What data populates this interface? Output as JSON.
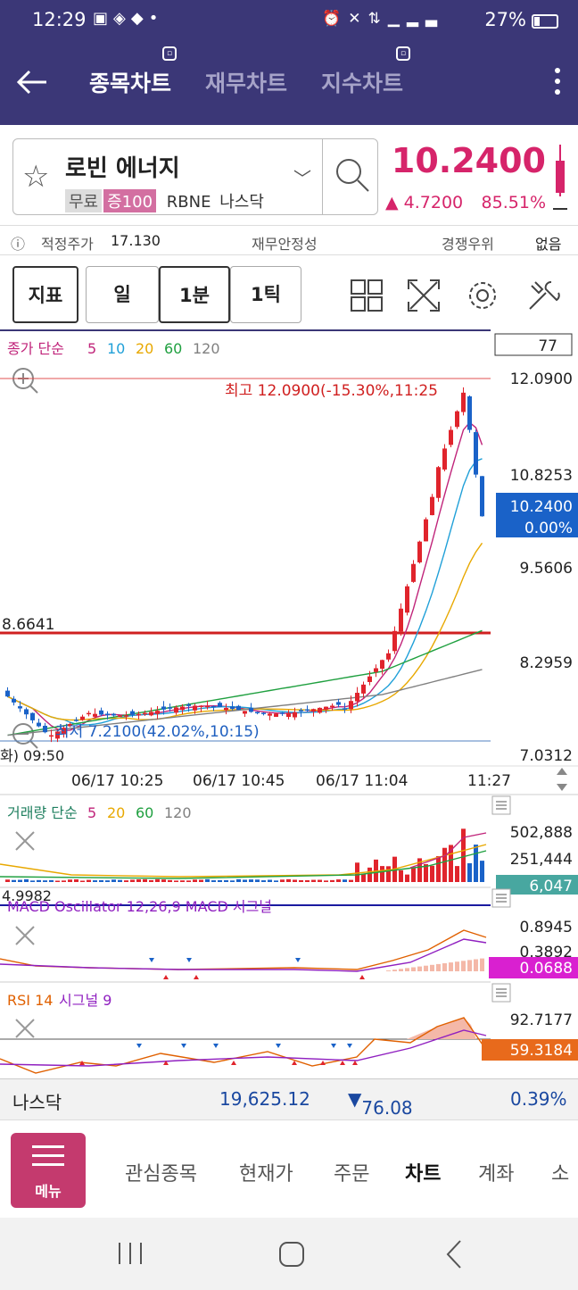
{
  "status_bar": {
    "time": "12:29",
    "battery": "27%",
    "left_icons": [
      "image-icon",
      "lock-icon",
      "binance-icon",
      "dot-icon"
    ],
    "right_icons": [
      "alarm-icon",
      "mute-icon",
      "lte-icon",
      "signal-icon"
    ]
  },
  "header": {
    "tabs": [
      {
        "label": "종목차트",
        "active": true
      },
      {
        "label": "재무차트",
        "active": false
      },
      {
        "label": "지수차트",
        "active": false
      }
    ]
  },
  "stock": {
    "name": "로빈 에너지",
    "tags": [
      "무료",
      "증100"
    ],
    "ticker": "RBNE",
    "market": "나스닥",
    "price": "10.2400",
    "change": "4.7200",
    "change_pct": "85.51%"
  },
  "info_row": {
    "fair_price_label": "적정주가",
    "fair_price": "17.130",
    "financial_stability": "재무안정성",
    "competition_rank": "경쟁우위",
    "none": "없음"
  },
  "toolbar": {
    "indicator": "지표",
    "period_day": "일",
    "period_1min": "1분",
    "period_1tick": "1틱"
  },
  "chart": {
    "legend_prefix": "종가 단순",
    "ma_periods": [
      "5",
      "10",
      "20",
      "60",
      "120"
    ],
    "ma_colors": [
      "#c0247a",
      "#20a0d8",
      "#e8a800",
      "#20a040",
      "#808080"
    ],
    "count_box": "77",
    "high_label": "최고 12.0900(-15.30%,11:25",
    "low_label": "최저 7.2100(42.02%,10:15)",
    "ref_line_label": "8.6641",
    "y_ticks": [
      "12.0900",
      "10.8253",
      "9.5606",
      "8.2959",
      "7.0312"
    ],
    "current_price_tag": "10.2400",
    "current_pct_tag": "0.00%",
    "x_labels": [
      "화) 09:50",
      "06/17 10:25",
      "06/17 10:45",
      "06/17 11:04",
      "11:27"
    ]
  },
  "volume": {
    "legend_prefix": "거래량 단순",
    "periods": [
      "5",
      "20",
      "60",
      "120"
    ],
    "ticks": [
      "502,888",
      "251,444"
    ],
    "current": "6,047"
  },
  "macd": {
    "legend": "MACD Oscillator 12,26,9 MACD 시그널",
    "left_value": "4.9982",
    "ticks": [
      "0.8945",
      "0.3892"
    ],
    "current": "0.0688"
  },
  "rsi": {
    "legend_prefix": "RSI 14",
    "legend_signal": "시그널 9",
    "ticks": [
      "92.7177"
    ],
    "current": "59.3184"
  },
  "chart_data": {
    "type": "candlestick",
    "x_labels": [
      "09:50",
      "10:25",
      "10:45",
      "11:04",
      "11:27"
    ],
    "ylim": [
      7.0312,
      12.09
    ],
    "high": {
      "value": 12.09,
      "time": "11:25"
    },
    "low": {
      "value": 7.21,
      "time": "10:15"
    },
    "last": 10.24,
    "reference_line": 8.6641
  },
  "index_bar": {
    "name": "나스닥",
    "value": "19,625.12",
    "change": "76.08",
    "pct": "0.39%"
  },
  "nav": {
    "menu_label": "메뉴",
    "items": [
      {
        "label": "관심종목",
        "active": false
      },
      {
        "label": "현재가",
        "active": false
      },
      {
        "label": "주문",
        "active": false
      },
      {
        "label": "차트",
        "active": true
      },
      {
        "label": "계좌",
        "active": false
      },
      {
        "label": "소",
        "active": false
      }
    ]
  }
}
